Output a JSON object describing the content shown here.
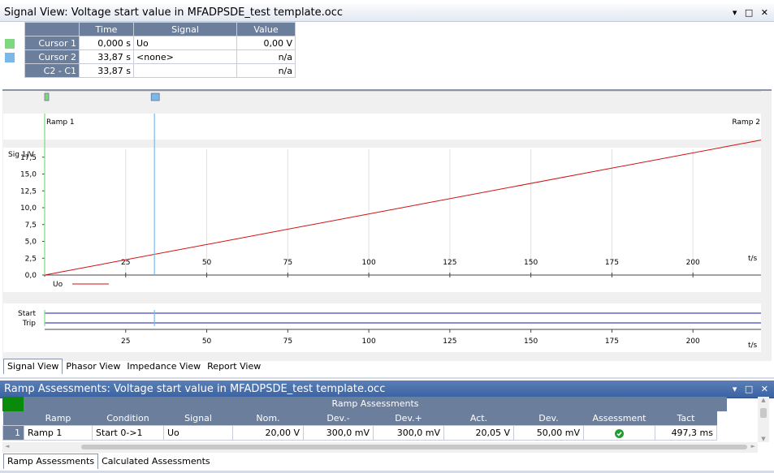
{
  "signal_view": {
    "title": "Signal View: Voltage start value in MFADPSDE_test template.occ",
    "window_controls": "▾ □ ✕",
    "cursor_table": {
      "headers": [
        "Time",
        "Signal",
        "Value"
      ],
      "rows": [
        {
          "label": "Cursor 1",
          "swatch": "#7ed87e",
          "time": "0,000 s",
          "signal": "Uo",
          "value": "0,00 V"
        },
        {
          "label": "Cursor 2",
          "swatch": "#7ab8ea",
          "time": "33,87 s",
          "signal": "<none>",
          "value": "n/a"
        },
        {
          "label": "C2 - C1",
          "swatch": "",
          "time": "33,87 s",
          "signal": "",
          "value": "n/a"
        }
      ]
    },
    "ramp_labels": [
      "Ramp 1",
      "Ramp 2"
    ],
    "tabs": [
      "Signal View",
      "Phasor View",
      "Impedance View",
      "Report View"
    ],
    "active_tab": "Signal View"
  },
  "chart_data": {
    "type": "line",
    "ylabel": "Sig 1/V",
    "xlabel": "t/s",
    "x_ticks": [
      25,
      50,
      75,
      100,
      125,
      150,
      175,
      200
    ],
    "y_ticks": [
      "0,0",
      "2,5",
      "5,0",
      "7,5",
      "10,0",
      "12,5",
      "15,0",
      "17,5"
    ],
    "xlim": [
      0,
      221
    ],
    "ylim": [
      0,
      20
    ],
    "grid": true,
    "series": [
      {
        "name": "Uo",
        "color": "#d01010",
        "x": [
          0,
          221
        ],
        "y": [
          0,
          20.05
        ]
      }
    ],
    "cursors": [
      {
        "name": "Cursor 1",
        "x": 0,
        "color": "#7ed87e"
      },
      {
        "name": "Cursor 2",
        "x": 33.87,
        "color": "#7ab8ea"
      }
    ],
    "binary_labels": [
      "Start",
      "Trip"
    ]
  },
  "ramp_panel": {
    "title": "Ramp Assessments: Voltage start value in MFADPSDE_test template.occ",
    "window_controls": "▾ □ ✕",
    "group_header": "Ramp Assessments",
    "headers": [
      "Ramp",
      "Condition",
      "Signal",
      "Nom.",
      "Dev.-",
      "Dev.+",
      "Act.",
      "Dev.",
      "Assessment",
      "Tact"
    ],
    "rows": [
      {
        "index": "1",
        "ramp": "Ramp 1",
        "condition": "Start 0->1",
        "signal": "Uo",
        "nom": "20,00 V",
        "dev_minus": "300,0 mV",
        "dev_plus": "300,0 mV",
        "act": "20,05 V",
        "dev": "50,00 mV",
        "assessment": "passed",
        "tact": "497,3 ms"
      }
    ],
    "tabs": [
      "Ramp Assessments",
      "Calculated Assessments"
    ],
    "active_tab": "Ramp Assessments"
  }
}
